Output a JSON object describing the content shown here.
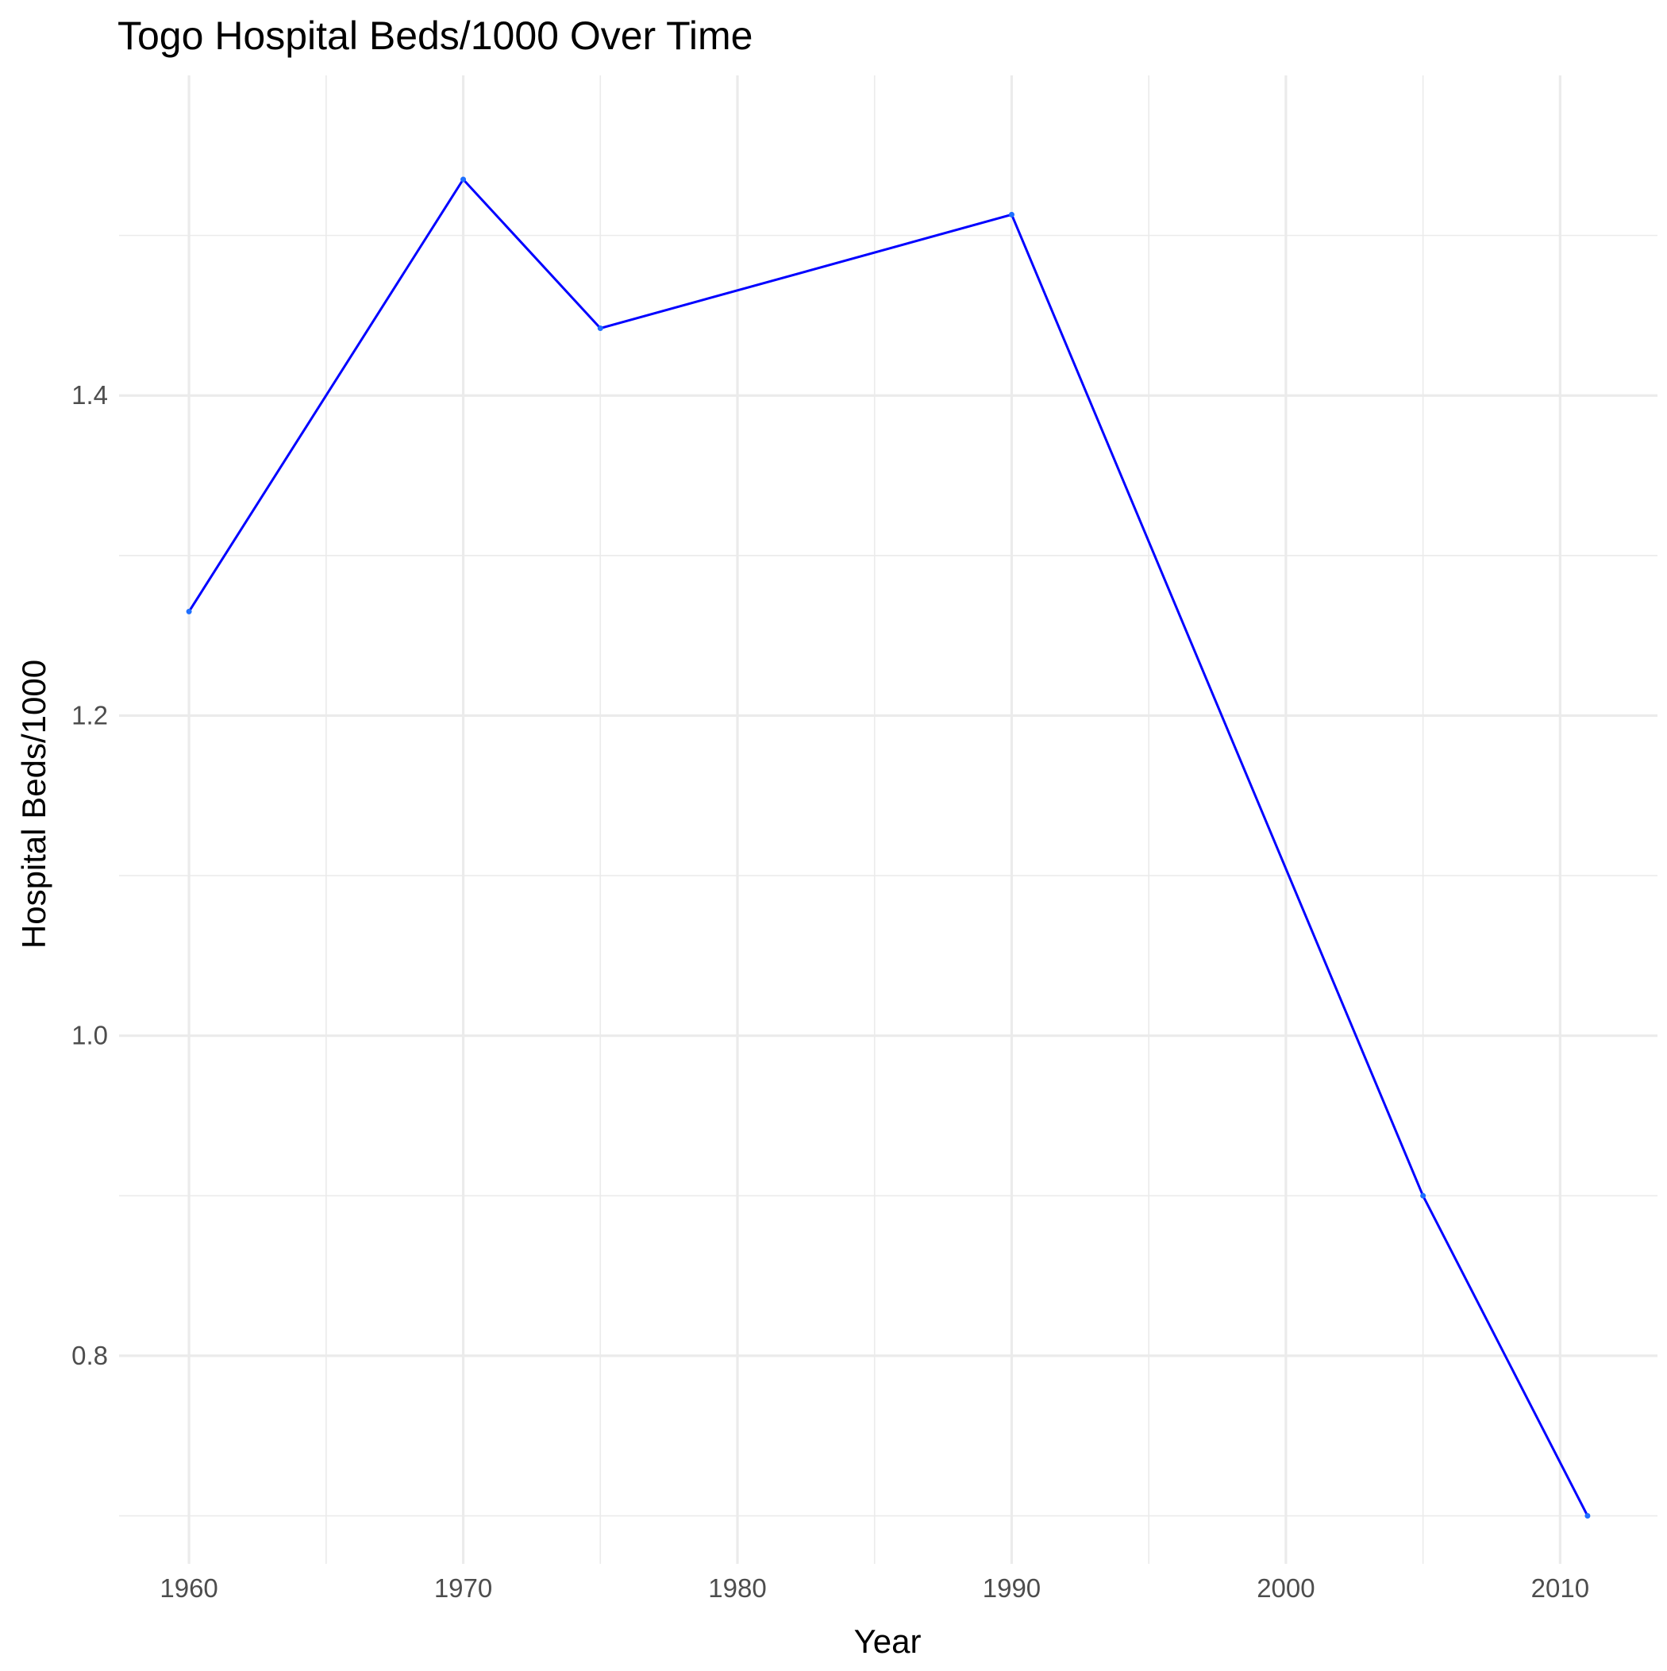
{
  "chart_data": {
    "type": "line",
    "title": "Togo Hospital Beds/1000 Over Time",
    "xlabel": "Year",
    "ylabel": "Hospital Beds/1000",
    "xlim": [
      1957.45,
      2013.55
    ],
    "ylim": [
      0.67,
      1.6
    ],
    "x_ticks": [
      1960,
      1970,
      1980,
      1990,
      2000,
      2010
    ],
    "x_minor_ticks": [
      1965,
      1975,
      1985,
      1995,
      2005
    ],
    "y_ticks": [
      0.8,
      1.0,
      1.2,
      1.4
    ],
    "y_tick_labels": [
      "0.8",
      "1.0",
      "1.2",
      "1.4"
    ],
    "y_minor_ticks": [
      0.7,
      0.9,
      1.1,
      1.3,
      1.5
    ],
    "grid": true,
    "series": [
      {
        "color": "#0000ff",
        "x": [
          1960,
          1970,
          1975,
          1990,
          2005,
          2011
        ],
        "y": [
          1.265,
          1.535,
          1.442,
          1.513,
          0.9,
          0.7
        ]
      }
    ]
  }
}
